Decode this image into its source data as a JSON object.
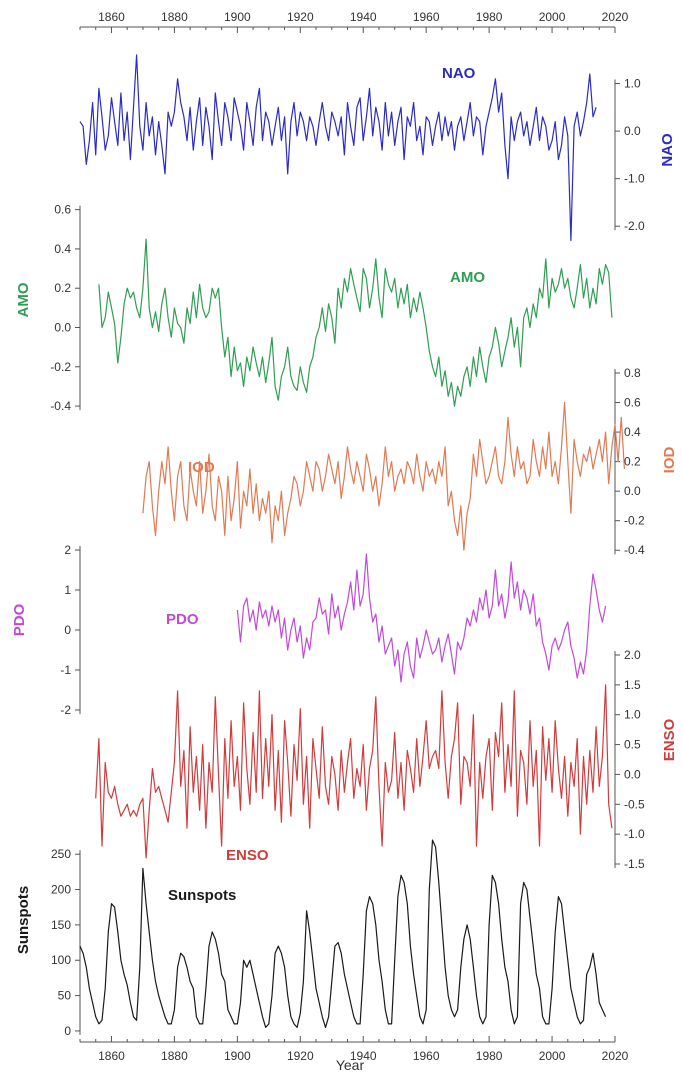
{
  "chart_data": {
    "type": "line",
    "xlabel": "Year",
    "xlim": [
      1850,
      2020
    ],
    "xticks": [
      1860,
      1880,
      1900,
      1920,
      1940,
      1960,
      1980,
      2000,
      2020
    ],
    "series": [
      {
        "name": "NAO",
        "color": "#2b2bc4",
        "axis_side": "right",
        "ylim": [
          -2.5,
          1.6
        ],
        "yticks": [
          1.0,
          0.0,
          -1.0,
          -2.0
        ],
        "ytick_labels": [
          "1.0",
          "0.0",
          "-1.0",
          "-2.0"
        ],
        "x_start": 1850,
        "values": [
          0.2,
          0.1,
          -0.7,
          -0.2,
          0.6,
          -0.5,
          0.9,
          0.3,
          -0.4,
          -0.1,
          0.7,
          0.2,
          -0.3,
          0.8,
          -0.2,
          0.4,
          -0.6,
          0.5,
          1.6,
          0.1,
          -0.4,
          0.6,
          -0.1,
          0.3,
          -0.5,
          0.2,
          -0.3,
          -0.9,
          0.4,
          0.1,
          0.4,
          1.1,
          0.6,
          0.3,
          -0.2,
          0.5,
          -0.4,
          0.2,
          0.7,
          -0.3,
          0.5,
          0.1,
          -0.6,
          0.8,
          0.2,
          -0.3,
          0.6,
          0.3,
          -0.2,
          0.7,
          0.4,
          0.1,
          -0.4,
          0.6,
          0.2,
          -0.3,
          0.5,
          0.9,
          -0.2,
          0.4,
          0.2,
          -0.3,
          0.1,
          0.5,
          -0.2,
          0.3,
          -0.9,
          0.2,
          0.6,
          -0.1,
          0.4,
          0.2,
          -0.2,
          0.3,
          0.1,
          -0.3,
          0.2,
          0.6,
          0.1,
          -0.2,
          0.4,
          0.2,
          -0.1,
          0.3,
          -0.5,
          0.6,
          0.1,
          -0.3,
          0.5,
          0.7,
          -0.2,
          0.3,
          0.9,
          -0.1,
          0.5,
          0.2,
          -0.4,
          0.6,
          -0.1,
          0.4,
          -0.3,
          0.2,
          0.5,
          -0.6,
          0.3,
          0.1,
          0.6,
          -0.2,
          0.1,
          -0.5,
          0.3,
          0.2,
          -0.3,
          0.1,
          0.4,
          -0.2,
          0.3,
          -0.1,
          0.2,
          -0.4,
          0.1,
          0.3,
          -0.2,
          0.2,
          0.6,
          -0.1,
          0.3,
          0.2,
          -0.5,
          0.1,
          0.4,
          0.7,
          1.1,
          0.4,
          0.8,
          -0.3,
          -1.0,
          0.3,
          -0.2,
          0.2,
          0.4,
          -0.1,
          0.2,
          -0.3,
          0.1,
          0.5,
          -0.2,
          0.3,
          0.1,
          -0.4,
          -0.2,
          0.2,
          -0.6,
          -0.3,
          0.3,
          -0.1,
          -2.3,
          0.1,
          0.4,
          -0.1,
          0.2,
          0.6,
          1.2,
          0.3,
          0.5
        ],
        "label": "NAO",
        "label_pos": [
          1975,
          1.1
        ]
      },
      {
        "name": "AMO",
        "color": "#2e9e52",
        "axis_side": "left",
        "ylim": [
          -0.42,
          0.7
        ],
        "yticks": [
          0.6,
          0.4,
          0.2,
          0.0,
          -0.2,
          -0.4
        ],
        "ytick_labels": [
          "0.6",
          "0.4",
          "0.2",
          "0.0",
          "-0.2",
          "-0.4"
        ],
        "x_start": 1856,
        "values": [
          0.22,
          0.0,
          0.05,
          0.18,
          0.1,
          0.02,
          -0.18,
          -0.05,
          0.12,
          0.2,
          0.15,
          0.18,
          0.1,
          0.05,
          0.2,
          0.45,
          0.1,
          0.0,
          0.08,
          -0.02,
          0.12,
          0.2,
          0.05,
          -0.05,
          0.1,
          0.02,
          0.0,
          -0.08,
          0.1,
          0.02,
          0.18,
          0.05,
          0.22,
          0.1,
          0.05,
          0.08,
          0.2,
          0.15,
          0.2,
          0.0,
          -0.15,
          -0.05,
          -0.25,
          -0.1,
          -0.22,
          -0.18,
          -0.3,
          -0.15,
          -0.22,
          -0.1,
          -0.18,
          -0.25,
          -0.15,
          -0.28,
          -0.18,
          -0.05,
          -0.3,
          -0.37,
          -0.25,
          -0.2,
          -0.1,
          -0.25,
          -0.3,
          -0.32,
          -0.2,
          -0.28,
          -0.33,
          -0.2,
          -0.15,
          -0.05,
          0.0,
          0.1,
          -0.02,
          0.12,
          0.05,
          -0.08,
          0.2,
          0.1,
          0.25,
          0.18,
          0.3,
          0.22,
          0.15,
          0.08,
          0.3,
          0.25,
          0.1,
          0.2,
          0.35,
          0.15,
          0.05,
          0.3,
          0.22,
          0.18,
          0.25,
          0.1,
          0.2,
          0.12,
          0.22,
          0.05,
          0.15,
          0.08,
          0.18,
          0.1,
          0.0,
          -0.12,
          -0.2,
          -0.25,
          -0.15,
          -0.3,
          -0.22,
          -0.35,
          -0.28,
          -0.4,
          -0.3,
          -0.35,
          -0.25,
          -0.2,
          -0.3,
          -0.15,
          -0.25,
          -0.1,
          -0.2,
          -0.28,
          -0.15,
          -0.1,
          0.0,
          -0.08,
          -0.2,
          -0.12,
          -0.05,
          0.05,
          -0.1,
          0.0,
          -0.2,
          0.05,
          0.1,
          0.0,
          0.12,
          0.05,
          0.2,
          0.15,
          0.35,
          0.1,
          0.25,
          0.18,
          0.22,
          0.3,
          0.2,
          0.25,
          0.15,
          0.1,
          0.2,
          0.32,
          0.15,
          0.25,
          0.1,
          0.2,
          0.12,
          0.3,
          0.22,
          0.32,
          0.28,
          0.05
        ],
        "label": "AMO",
        "label_pos": [
          1976,
          0.22
        ]
      },
      {
        "name": "IOD",
        "color": "#e07a52",
        "axis_side": "right",
        "ylim": [
          -0.5,
          0.8
        ],
        "yticks": [
          0.8,
          0.6,
          0.4,
          0.2,
          0.0,
          -0.2,
          -0.4
        ],
        "ytick_labels": [
          "0.8",
          "0.6",
          "0.4",
          "0.2",
          "0.0",
          "-0.2",
          "-0.4"
        ],
        "x_start": 1870,
        "values": [
          -0.15,
          0.1,
          0.2,
          -0.1,
          -0.3,
          0.0,
          0.2,
          0.05,
          0.3,
          0.0,
          -0.2,
          0.1,
          0.2,
          -0.1,
          -0.2,
          0.15,
          0.0,
          -0.1,
          0.2,
          -0.15,
          0.0,
          0.25,
          -0.1,
          -0.2,
          0.1,
          0.0,
          -0.3,
          0.1,
          -0.2,
          -0.05,
          0.2,
          -0.25,
          0.0,
          -0.1,
          0.15,
          -0.15,
          0.05,
          -0.2,
          -0.05,
          -0.15,
          0.0,
          -0.35,
          -0.1,
          -0.2,
          0.0,
          -0.3,
          -0.15,
          -0.05,
          0.1,
          0.05,
          -0.1,
          0.0,
          0.2,
          0.1,
          0.0,
          0.2,
          0.15,
          0.0,
          0.1,
          0.25,
          0.15,
          0.05,
          0.2,
          -0.05,
          0.1,
          0.3,
          0.15,
          0.05,
          0.2,
          0.1,
          0.0,
          0.25,
          0.15,
          0.0,
          0.1,
          -0.1,
          0.05,
          0.3,
          0.1,
          0.2,
          0.0,
          0.1,
          0.15,
          0.05,
          0.2,
          0.15,
          0.05,
          0.25,
          0.1,
          0.0,
          0.2,
          0.1,
          0.15,
          0.05,
          0.2,
          0.1,
          0.3,
          -0.1,
          0.0,
          -0.2,
          -0.3,
          -0.1,
          -0.4,
          -0.15,
          -0.05,
          0.25,
          0.1,
          0.35,
          0.2,
          0.05,
          0.1,
          0.2,
          0.3,
          0.1,
          0.05,
          0.2,
          0.5,
          0.25,
          0.1,
          0.3,
          0.15,
          0.2,
          0.05,
          0.1,
          0.35,
          0.2,
          0.1,
          0.3,
          0.15,
          0.4,
          0.1,
          0.2,
          0.05,
          0.3,
          0.6,
          0.2,
          -0.15,
          0.35,
          0.2,
          0.1,
          0.25,
          0.2,
          0.3,
          0.15,
          0.25,
          0.35,
          0.2,
          0.4,
          0.05,
          0.3,
          0.45,
          0.2,
          0.5,
          0.15
        ]
      },
      {
        "name": "PDO",
        "color": "#c04ad8",
        "axis_side": "left",
        "ylim": [
          -2.0,
          2.0
        ],
        "yticks": [
          2,
          1,
          0,
          -1,
          -2
        ],
        "ytick_labels": [
          "2",
          "1",
          "0",
          "-1",
          "-2"
        ],
        "x_start": 1900,
        "values": [
          0.5,
          -0.3,
          0.6,
          0.8,
          0.2,
          0.5,
          0.0,
          0.7,
          0.3,
          0.5,
          0.1,
          0.6,
          0.2,
          0.5,
          -0.2,
          0.3,
          -0.5,
          0.0,
          0.3,
          -0.3,
          0.1,
          -0.7,
          -0.2,
          -0.5,
          0.2,
          0.3,
          0.8,
          0.4,
          0.5,
          -0.1,
          0.9,
          0.3,
          0.6,
          0.0,
          0.4,
          0.7,
          1.2,
          0.5,
          1.5,
          0.6,
          0.9,
          1.9,
          0.8,
          0.2,
          0.4,
          -0.3,
          0.1,
          -0.6,
          -0.4,
          -0.2,
          -0.9,
          -0.5,
          -1.3,
          -0.6,
          -0.3,
          -0.9,
          -1.2,
          -0.2,
          -0.7,
          -0.4,
          0.0,
          -0.3,
          -0.6,
          -0.5,
          -0.2,
          -0.8,
          -0.4,
          -0.1,
          -0.6,
          -1.1,
          -0.3,
          -0.5,
          -0.2,
          0.3,
          0.1,
          0.5,
          0.2,
          0.8,
          0.5,
          1.0,
          0.3,
          0.6,
          1.5,
          0.6,
          0.9,
          0.3,
          0.7,
          1.7,
          0.8,
          1.2,
          0.5,
          1.0,
          0.8,
          0.4,
          0.9,
          0.1,
          0.3,
          -0.3,
          -0.6,
          -1.0,
          -0.4,
          -0.2,
          -0.5,
          -0.3,
          0.0,
          0.2,
          -0.4,
          -0.7,
          -1.2,
          -0.8,
          -1.1,
          -0.5,
          0.6,
          1.4,
          1.0,
          0.5,
          0.2,
          0.6
        ]
      },
      {
        "name": "ENSO",
        "color": "#d03c3c",
        "axis_side": "right",
        "ylim": [
          -1.5,
          2.0
        ],
        "yticks": [
          2.0,
          1.5,
          1.0,
          0.5,
          0.0,
          -0.5,
          -1.0,
          -1.5
        ],
        "ytick_labels": [
          "2.0",
          "1.5",
          "1.0",
          "0.5",
          "0.0",
          "-0.5",
          "-1.0",
          "-1.5"
        ],
        "x_start": 1855,
        "values": [
          -0.4,
          0.6,
          -1.2,
          0.2,
          -0.3,
          -0.4,
          -0.2,
          -0.5,
          -0.7,
          -0.6,
          -0.5,
          -0.7,
          -0.6,
          -0.7,
          -0.5,
          -0.4,
          -1.4,
          -0.6,
          0.1,
          -0.3,
          -0.2,
          -0.4,
          -0.6,
          -0.8,
          -0.3,
          0.2,
          1.4,
          -0.2,
          0.4,
          -0.9,
          0.8,
          -0.3,
          0.3,
          -0.6,
          0.5,
          -0.9,
          0.2,
          -0.3,
          1.3,
          0.0,
          -1.2,
          0.6,
          -0.4,
          0.9,
          -0.2,
          0.3,
          -0.6,
          1.2,
          0.1,
          -0.5,
          0.7,
          -0.3,
          1.4,
          -0.4,
          0.6,
          -0.2,
          1.0,
          -0.6,
          0.4,
          -0.8,
          0.9,
          0.2,
          -0.7,
          0.5,
          -0.1,
          1.1,
          -0.5,
          0.3,
          -0.9,
          0.6,
          0.1,
          -0.4,
          0.8,
          -0.2,
          -0.5,
          0.3,
          0.0,
          -0.6,
          0.4,
          -0.3,
          0.2,
          0.6,
          -0.4,
          0.1,
          -0.2,
          0.5,
          -0.6,
          0.1,
          0.4,
          1.3,
          -0.2,
          -1.2,
          0.2,
          -0.3,
          -0.1,
          0.7,
          -0.4,
          0.2,
          -0.6,
          0.4,
          0.1,
          -0.3,
          0.6,
          -0.2,
          0.3,
          0.9,
          0.1,
          0.3,
          0.4,
          0.1,
          1.4,
          0.2,
          -0.4,
          0.3,
          0.6,
          1.2,
          -0.5,
          0.3,
          0.2,
          -0.2,
          1.0,
          -1.2,
          0.2,
          -0.4,
          0.3,
          0.6,
          -0.6,
          0.7,
          0.3,
          1.2,
          -0.3,
          0.5,
          -0.2,
          1.4,
          -0.7,
          0.4,
          0.2,
          -0.5,
          0.9,
          -0.2,
          0.4,
          -1.2,
          0.8,
          -0.1,
          0.6,
          -0.3,
          0.9,
          0.1,
          -0.4,
          0.3,
          -0.7,
          0.2,
          -0.2,
          0.6,
          -1.0,
          0.3,
          -0.5,
          0.4,
          -0.3,
          0.8,
          -0.2,
          0.3,
          1.5,
          -0.5,
          -0.9
        ]
      },
      {
        "name": "Sunspots",
        "color": "#1a1a1a",
        "axis_side": "left",
        "ylim": [
          -10,
          280
        ],
        "yticks": [
          250,
          200,
          150,
          100,
          50,
          0
        ],
        "ytick_labels": [
          "250",
          "200",
          "150",
          "100",
          "50",
          "0"
        ],
        "x_start": 1850,
        "values": [
          120,
          110,
          90,
          60,
          40,
          20,
          10,
          15,
          60,
          140,
          180,
          175,
          140,
          100,
          80,
          65,
          40,
          20,
          15,
          90,
          230,
          180,
          140,
          100,
          70,
          50,
          35,
          20,
          10,
          10,
          30,
          90,
          110,
          105,
          90,
          70,
          60,
          20,
          10,
          10,
          60,
          120,
          140,
          130,
          110,
          80,
          70,
          30,
          20,
          10,
          10,
          40,
          100,
          90,
          100,
          80,
          60,
          40,
          20,
          5,
          10,
          50,
          110,
          120,
          110,
          90,
          50,
          20,
          10,
          5,
          25,
          70,
          170,
          140,
          100,
          60,
          40,
          20,
          5,
          20,
          70,
          120,
          125,
          110,
          80,
          60,
          40,
          20,
          10,
          10,
          80,
          170,
          190,
          180,
          150,
          100,
          70,
          30,
          10,
          10,
          100,
          190,
          220,
          210,
          180,
          120,
          80,
          50,
          20,
          10,
          30,
          200,
          270,
          260,
          210,
          150,
          90,
          50,
          30,
          20,
          30,
          90,
          130,
          150,
          130,
          90,
          50,
          20,
          10,
          20,
          150,
          220,
          210,
          180,
          130,
          90,
          70,
          30,
          10,
          20,
          180,
          210,
          200,
          160,
          120,
          80,
          60,
          20,
          10,
          10,
          60,
          140,
          190,
          180,
          140,
          100,
          60,
          40,
          20,
          10,
          15,
          80,
          90,
          110,
          80,
          40,
          30,
          20
        ]
      }
    ],
    "labels": {
      "NAO_axis": "NAO",
      "AMO_axis": "AMO",
      "IOD_axis": "IOD",
      "PDO_axis": "PDO",
      "ENSO_axis": "ENSO",
      "Sunspots_axis": "Sunspots",
      "NAO_inline": "NAO",
      "AMO_inline": "AMO",
      "IOD_inline": "IOD",
      "PDO_inline": "PDO",
      "ENSO_inline": "ENSO",
      "Sunspots_inline": "Sunspots"
    },
    "grid": false
  }
}
